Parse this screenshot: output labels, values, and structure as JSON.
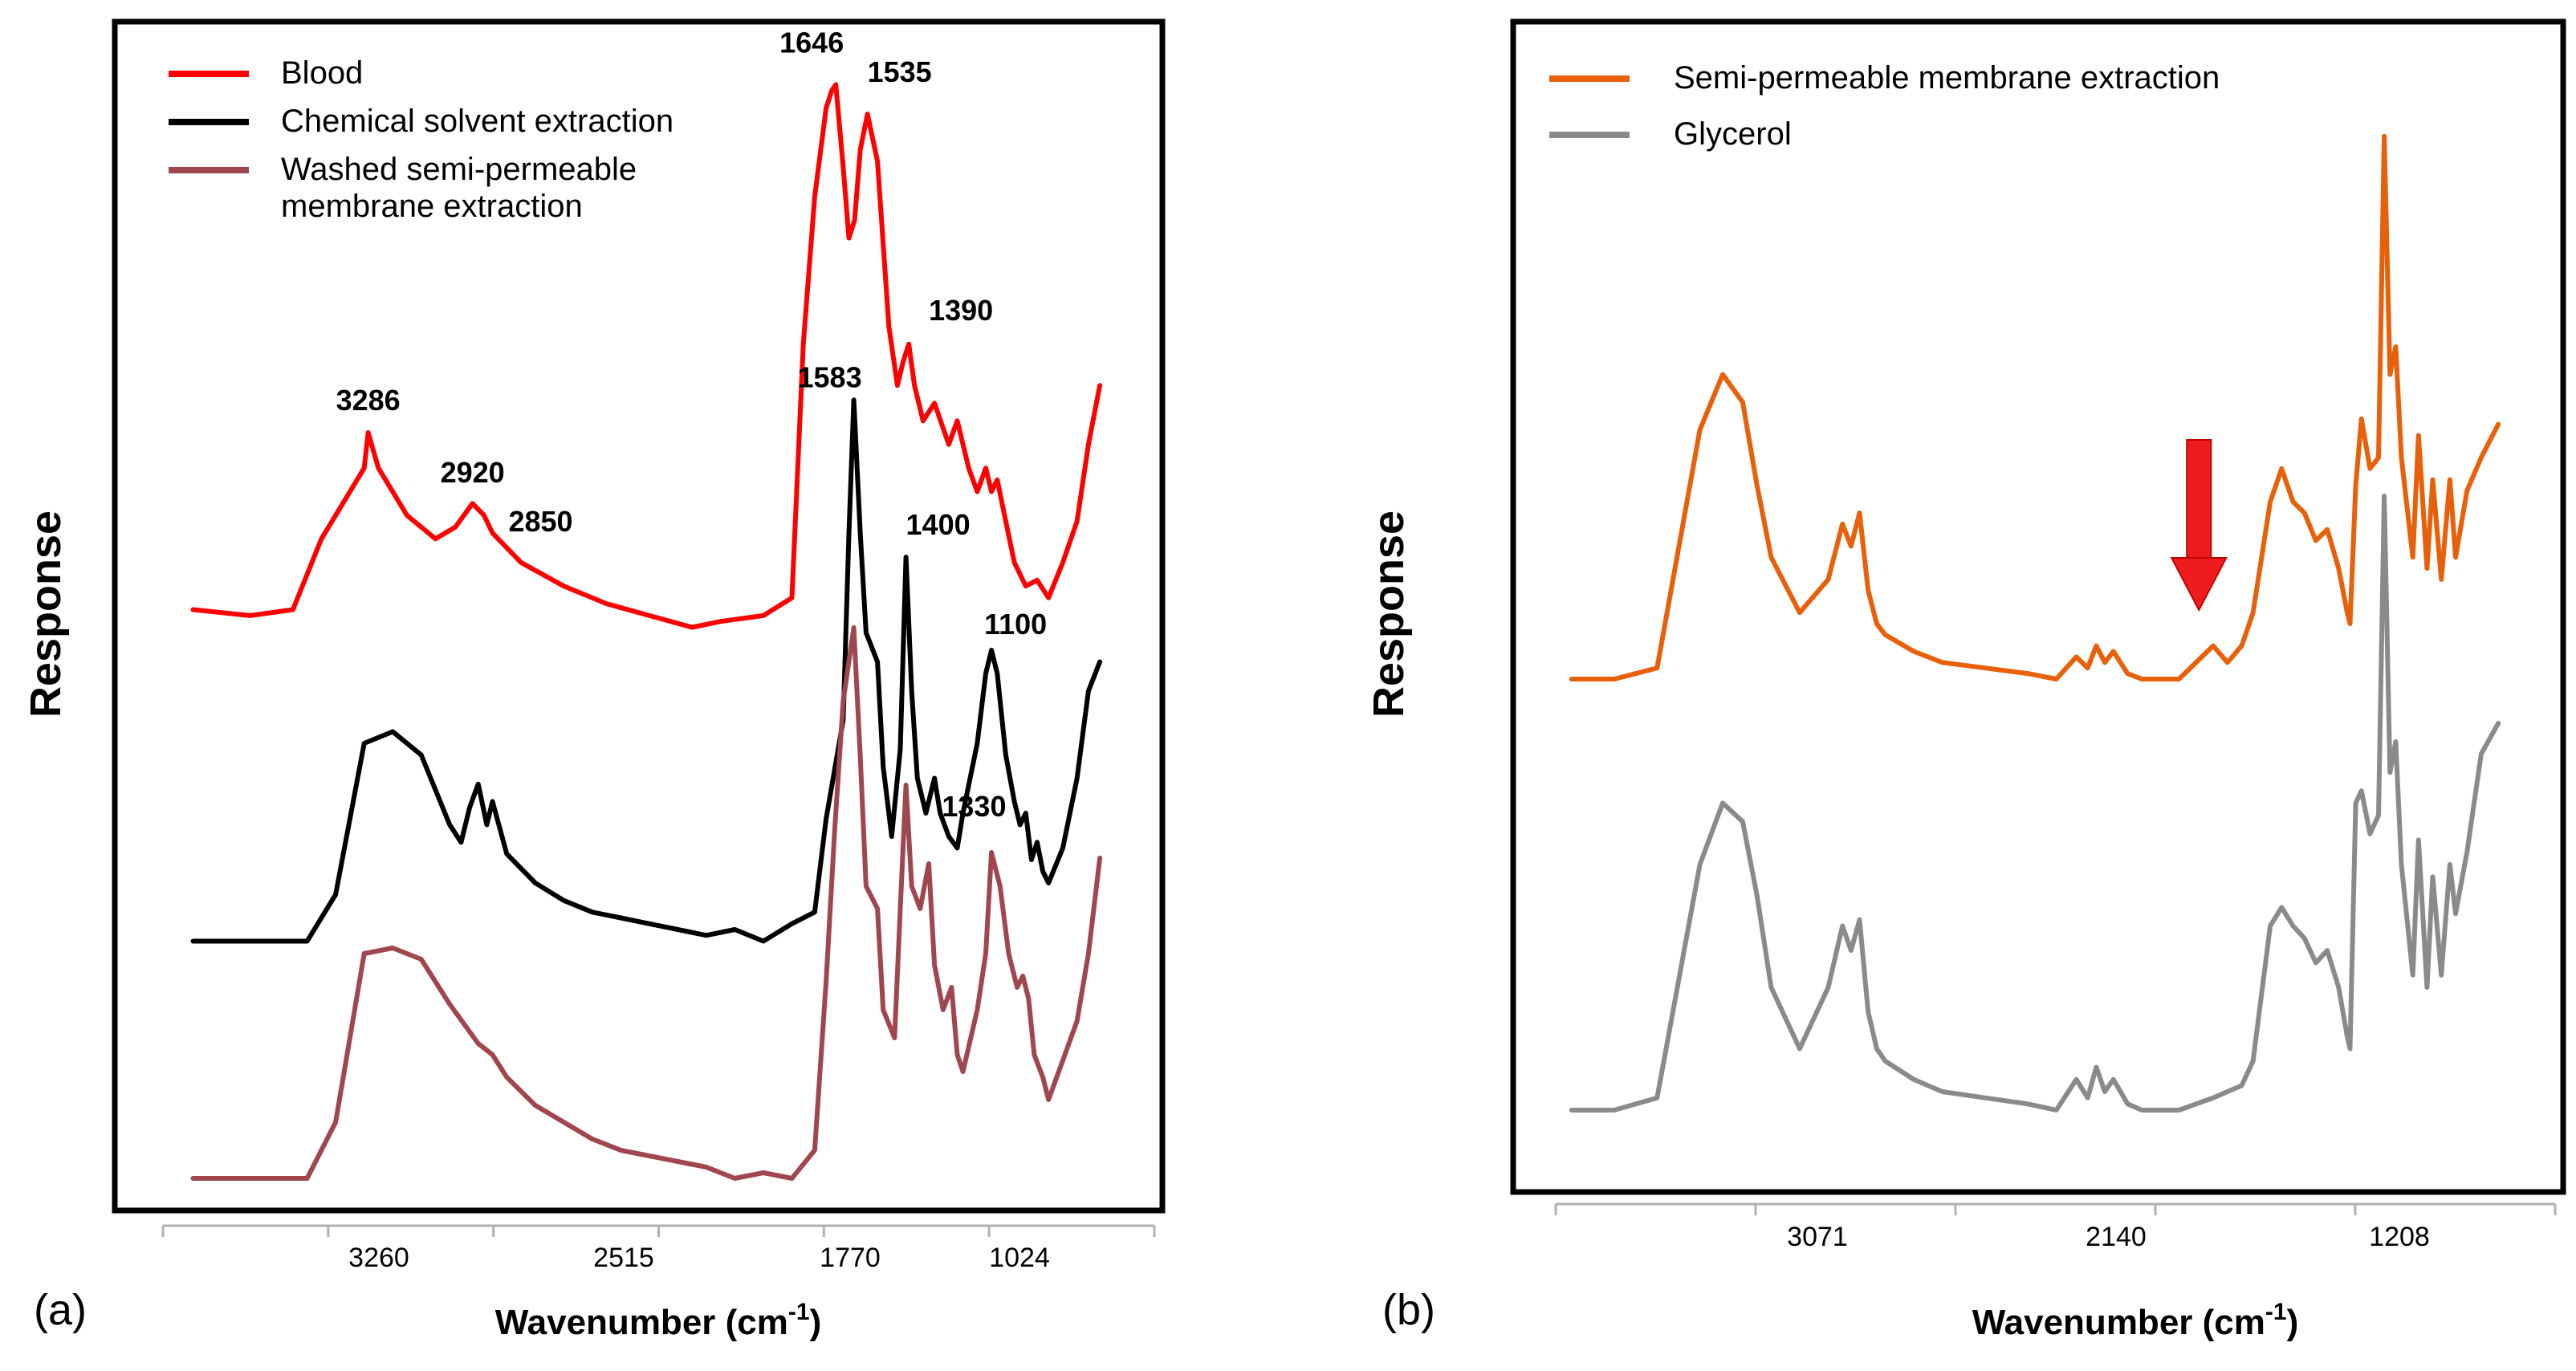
{
  "chart_data": [
    {
      "panel_label": "(a)",
      "type": "line",
      "xlabel": "Wavenumber (cm",
      "xlabel_sup": "-1",
      "xlabel_end": ")",
      "ylabel": "Response",
      "x_reversed": true,
      "xlim": [
        4000,
        650
      ],
      "x_ticks": [
        "3260",
        "2515",
        "1770",
        "1024"
      ],
      "y_units": "arbitrary (offset traces)",
      "series": [
        {
          "name": "Blood",
          "color": "#ff0000",
          "x": [
            3900,
            3700,
            3550,
            3450,
            3300,
            3286,
            3250,
            3150,
            3050,
            2980,
            2920,
            2880,
            2850,
            2750,
            2600,
            2450,
            2300,
            2150,
            2050,
            1900,
            1800,
            1760,
            1720,
            1680,
            1660,
            1646,
            1620,
            1600,
            1580,
            1560,
            1535,
            1500,
            1460,
            1430,
            1410,
            1390,
            1370,
            1340,
            1300,
            1250,
            1220,
            1180,
            1150,
            1120,
            1100,
            1080,
            1050,
            1020,
            980,
            940,
            900,
            850,
            800,
            760,
            720
          ],
          "y": [
            0.1,
            0.09,
            0.1,
            0.22,
            0.34,
            0.4,
            0.34,
            0.26,
            0.22,
            0.24,
            0.28,
            0.26,
            0.23,
            0.18,
            0.14,
            0.11,
            0.09,
            0.07,
            0.08,
            0.09,
            0.12,
            0.55,
            0.8,
            0.95,
            0.98,
            0.99,
            0.85,
            0.73,
            0.76,
            0.88,
            0.94,
            0.86,
            0.58,
            0.48,
            0.52,
            0.55,
            0.48,
            0.42,
            0.45,
            0.38,
            0.42,
            0.34,
            0.3,
            0.34,
            0.3,
            0.32,
            0.25,
            0.18,
            0.14,
            0.15,
            0.12,
            0.18,
            0.25,
            0.38,
            0.48
          ]
        },
        {
          "name": "Chemical solvent extraction",
          "color": "#000000",
          "x": [
            3900,
            3700,
            3500,
            3400,
            3300,
            3200,
            3100,
            3000,
            2960,
            2930,
            2900,
            2870,
            2850,
            2800,
            2700,
            2600,
            2500,
            2400,
            2300,
            2200,
            2100,
            2000,
            1900,
            1800,
            1720,
            1680,
            1620,
            1600,
            1583,
            1560,
            1540,
            1500,
            1480,
            1450,
            1420,
            1400,
            1380,
            1360,
            1330,
            1300,
            1280,
            1250,
            1220,
            1200,
            1150,
            1120,
            1100,
            1080,
            1050,
            1020,
            1000,
            980,
            960,
            940,
            920,
            900,
            850,
            800,
            760,
            720
          ],
          "y": [
            0.02,
            0.02,
            0.02,
            0.1,
            0.36,
            0.38,
            0.34,
            0.22,
            0.19,
            0.25,
            0.29,
            0.22,
            0.26,
            0.17,
            0.12,
            0.09,
            0.07,
            0.06,
            0.05,
            0.04,
            0.03,
            0.04,
            0.02,
            0.05,
            0.07,
            0.23,
            0.4,
            0.72,
            0.95,
            0.72,
            0.55,
            0.5,
            0.32,
            0.2,
            0.35,
            0.68,
            0.45,
            0.3,
            0.24,
            0.3,
            0.24,
            0.2,
            0.18,
            0.24,
            0.36,
            0.48,
            0.52,
            0.48,
            0.34,
            0.26,
            0.22,
            0.24,
            0.16,
            0.19,
            0.14,
            0.12,
            0.18,
            0.3,
            0.45,
            0.5
          ]
        },
        {
          "name": "Washed semi-permeable membrane extraction",
          "color": "#a0464e",
          "x": [
            3900,
            3700,
            3500,
            3400,
            3300,
            3200,
            3100,
            3000,
            2900,
            2850,
            2800,
            2700,
            2600,
            2500,
            2400,
            2300,
            2200,
            2100,
            2000,
            1900,
            1800,
            1720,
            1680,
            1650,
            1620,
            1600,
            1583,
            1560,
            1540,
            1500,
            1480,
            1440,
            1420,
            1400,
            1380,
            1350,
            1320,
            1300,
            1270,
            1240,
            1220,
            1200,
            1150,
            1120,
            1100,
            1070,
            1040,
            1010,
            990,
            970,
            950,
            920,
            900,
            850,
            800,
            760,
            720
          ],
          "y": [
            0.0,
            0.0,
            0.0,
            0.1,
            0.4,
            0.41,
            0.39,
            0.31,
            0.24,
            0.22,
            0.18,
            0.13,
            0.1,
            0.07,
            0.05,
            0.04,
            0.03,
            0.02,
            0.0,
            0.01,
            0.0,
            0.05,
            0.35,
            0.62,
            0.85,
            0.92,
            0.98,
            0.75,
            0.52,
            0.48,
            0.3,
            0.25,
            0.48,
            0.7,
            0.52,
            0.48,
            0.56,
            0.38,
            0.3,
            0.34,
            0.22,
            0.19,
            0.3,
            0.4,
            0.58,
            0.52,
            0.4,
            0.34,
            0.36,
            0.32,
            0.22,
            0.18,
            0.14,
            0.21,
            0.28,
            0.4,
            0.57
          ]
        }
      ],
      "annotations": [
        {
          "text": "3286",
          "x": 3286,
          "series": "Blood"
        },
        {
          "text": "2920",
          "x": 2920,
          "series": "Blood"
        },
        {
          "text": "2850",
          "x": 2850,
          "series": "Blood"
        },
        {
          "text": "1646",
          "x": 1646,
          "series": "Blood"
        },
        {
          "text": "1535",
          "x": 1535,
          "series": "Blood"
        },
        {
          "text": "1390",
          "x": 1390,
          "series": "Blood"
        },
        {
          "text": "1583",
          "x": 1583,
          "series": "Chemical solvent extraction"
        },
        {
          "text": "1400",
          "x": 1400,
          "series": "Chemical solvent extraction"
        },
        {
          "text": "1330",
          "x": 1330,
          "series": "Chemical solvent extraction"
        },
        {
          "text": "1100",
          "x": 1100,
          "series": "Chemical solvent extraction"
        }
      ],
      "legend": {
        "placement": "top-left",
        "entries": [
          {
            "lines": [
              "Blood"
            ],
            "color": "#ff0000"
          },
          {
            "lines": [
              "Chemical solvent extraction"
            ],
            "color": "#000000"
          },
          {
            "lines": [
              "Washed semi-permeable",
              "membrane extraction"
            ],
            "color": "#a0464e"
          }
        ]
      }
    },
    {
      "panel_label": "(b)",
      "type": "line",
      "xlabel": "Wavenumber (cm",
      "xlabel_sup": "-1",
      "xlabel_end": ")",
      "ylabel": "Response",
      "x_reversed": true,
      "xlim": [
        4000,
        650
      ],
      "x_ticks": [
        "3071",
        "2140",
        "1208"
      ],
      "y_units": "arbitrary (offset traces)",
      "series": [
        {
          "name": "Semi-permeable membrane extraction",
          "color": "#e8600a",
          "x": [
            3950,
            3800,
            3650,
            3500,
            3420,
            3350,
            3300,
            3250,
            3150,
            3050,
            3000,
            2970,
            2940,
            2910,
            2880,
            2850,
            2750,
            2650,
            2500,
            2350,
            2250,
            2180,
            2140,
            2110,
            2080,
            2050,
            2000,
            1950,
            1900,
            1820,
            1760,
            1700,
            1650,
            1600,
            1560,
            1500,
            1460,
            1420,
            1380,
            1340,
            1300,
            1260,
            1230,
            1220,
            1200,
            1180,
            1150,
            1120,
            1100,
            1080,
            1060,
            1040,
            1000,
            980,
            950,
            930,
            900,
            870,
            850,
            810,
            760,
            700
          ],
          "y": [
            0.0,
            0.0,
            0.02,
            0.45,
            0.55,
            0.5,
            0.35,
            0.22,
            0.12,
            0.18,
            0.28,
            0.24,
            0.3,
            0.16,
            0.1,
            0.08,
            0.05,
            0.03,
            0.02,
            0.01,
            0.0,
            0.04,
            0.02,
            0.06,
            0.03,
            0.05,
            0.01,
            0.0,
            0.0,
            0.0,
            0.03,
            0.06,
            0.03,
            0.06,
            0.12,
            0.32,
            0.38,
            0.32,
            0.3,
            0.25,
            0.27,
            0.2,
            0.12,
            0.1,
            0.35,
            0.47,
            0.38,
            0.4,
            0.98,
            0.55,
            0.6,
            0.4,
            0.22,
            0.44,
            0.2,
            0.36,
            0.18,
            0.36,
            0.22,
            0.34,
            0.4,
            0.46
          ]
        },
        {
          "name": "Glycerol",
          "color": "#8a8a8a",
          "x": [
            3950,
            3800,
            3650,
            3500,
            3420,
            3350,
            3300,
            3250,
            3150,
            3050,
            3000,
            2970,
            2940,
            2910,
            2880,
            2850,
            2750,
            2650,
            2500,
            2350,
            2250,
            2180,
            2140,
            2110,
            2080,
            2050,
            2000,
            1950,
            1900,
            1820,
            1760,
            1700,
            1650,
            1600,
            1560,
            1500,
            1460,
            1420,
            1380,
            1340,
            1300,
            1260,
            1230,
            1220,
            1200,
            1180,
            1150,
            1120,
            1100,
            1080,
            1060,
            1040,
            1000,
            980,
            950,
            930,
            900,
            870,
            850,
            810,
            760,
            700
          ],
          "y": [
            0.0,
            0.0,
            0.02,
            0.4,
            0.5,
            0.47,
            0.35,
            0.2,
            0.1,
            0.2,
            0.3,
            0.26,
            0.31,
            0.16,
            0.1,
            0.08,
            0.05,
            0.03,
            0.02,
            0.01,
            0.0,
            0.05,
            0.02,
            0.07,
            0.03,
            0.05,
            0.01,
            0.0,
            0.0,
            0.0,
            0.01,
            0.02,
            0.03,
            0.04,
            0.08,
            0.3,
            0.33,
            0.3,
            0.28,
            0.24,
            0.26,
            0.2,
            0.12,
            0.1,
            0.5,
            0.52,
            0.45,
            0.48,
            1.0,
            0.55,
            0.6,
            0.4,
            0.22,
            0.44,
            0.2,
            0.38,
            0.22,
            0.4,
            0.32,
            0.42,
            0.58,
            0.63
          ]
        }
      ],
      "annotations": [
        {
          "text": "red down-arrow marker",
          "x": 1750,
          "series": "Semi-permeable membrane extraction"
        }
      ],
      "legend": {
        "placement": "top-left",
        "entries": [
          {
            "lines": [
              "Semi-permeable membrane extraction"
            ],
            "color": "#e8600a"
          },
          {
            "lines": [
              "Glycerol"
            ],
            "color": "#8a8a8a"
          }
        ]
      }
    }
  ]
}
